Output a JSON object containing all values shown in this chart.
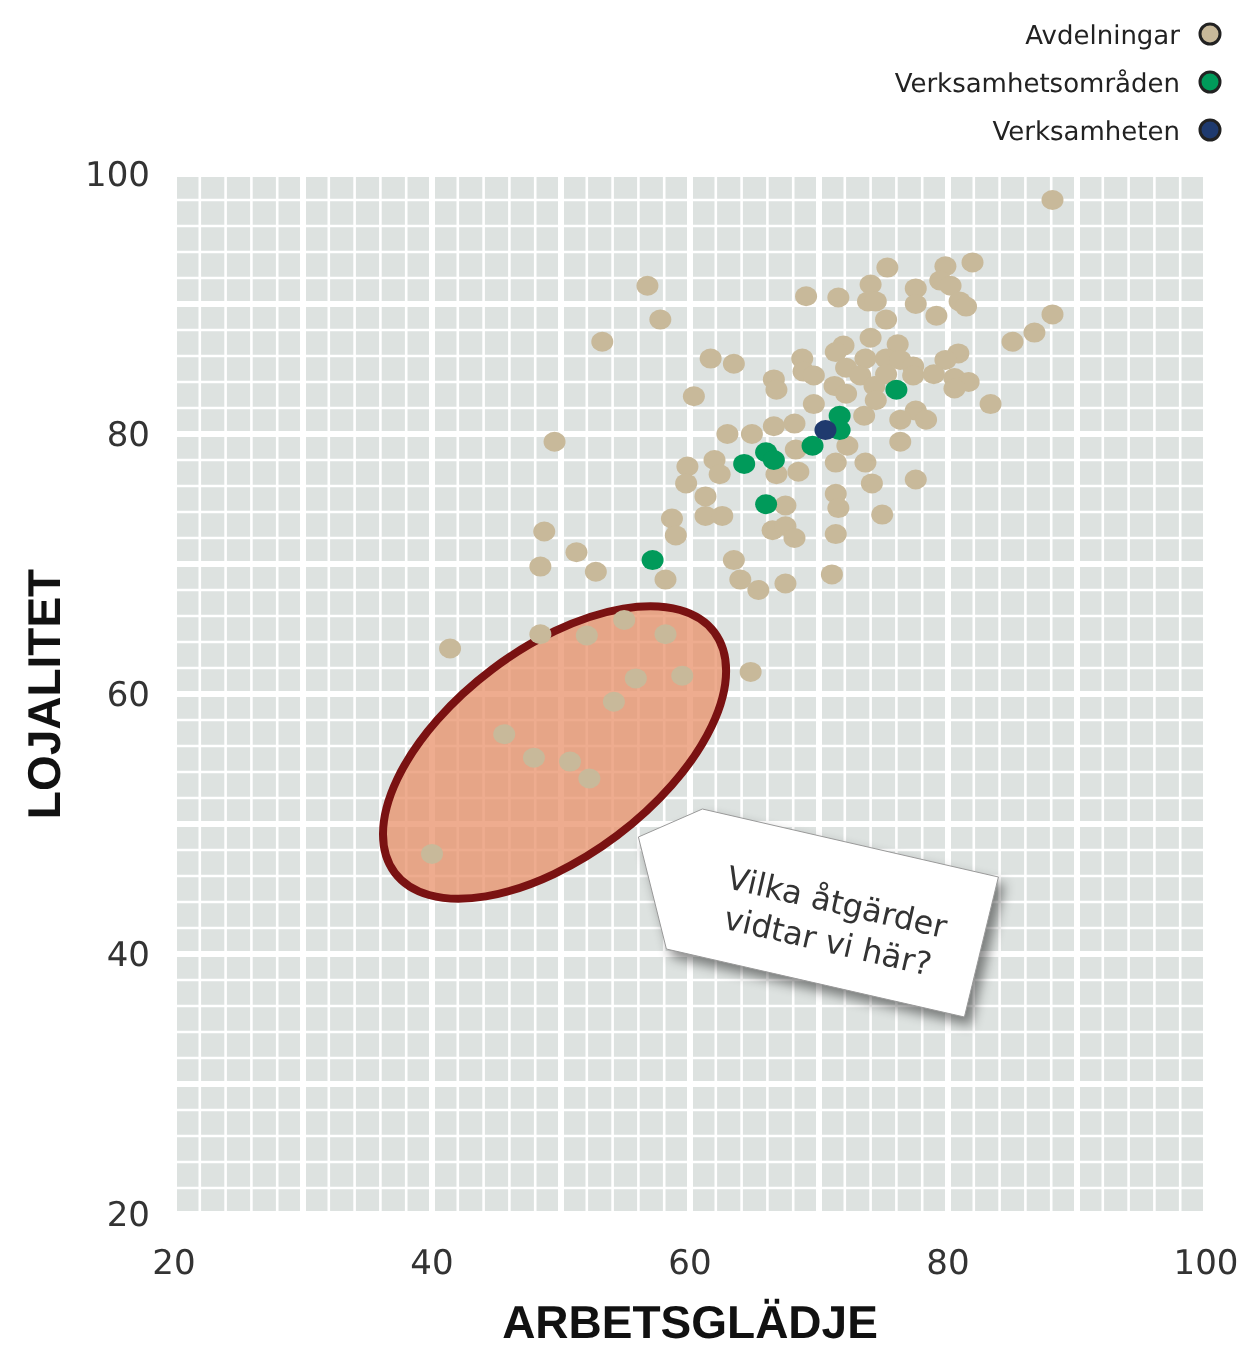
{
  "chart_data": {
    "type": "scatter",
    "xlabel": "ARBETSGLÄDJE",
    "ylabel": "LOJALITET",
    "xlim": [
      20,
      100
    ],
    "ylim": [
      20,
      100
    ],
    "xticks": [
      20,
      40,
      60,
      80,
      100
    ],
    "yticks": [
      20,
      40,
      60,
      80,
      100
    ],
    "grid": true,
    "legend": "top right",
    "marker": "circle",
    "annotations": [
      "Vilka åtgärder vidtar vi här?"
    ],
    "series": [
      {
        "name": "Avdelningar",
        "color": "#c8b99a",
        "x": [
          88.1,
          81.9,
          79.8,
          75.3,
          74.0,
          77.5,
          79.4,
          80.2,
          56.7,
          69.0,
          71.5,
          73.8,
          74.4,
          77.5,
          80.9,
          81.4,
          57.7,
          75.2,
          79.1,
          88.1,
          86.7,
          85.0,
          53.2,
          74.0,
          76.1,
          71.9,
          71.3,
          80.8,
          79.8,
          61.6,
          63.4,
          68.7,
          73.6,
          75.2,
          76.3,
          77.3,
          68.8,
          69.6,
          72.1,
          73.2,
          66.5,
          75.2,
          77.3,
          78.9,
          80.5,
          81.6,
          66.7,
          71.2,
          74.3,
          80.5,
          60.3,
          72.1,
          74.4,
          83.3,
          69.6,
          77.5,
          76.3,
          78.3,
          73.5,
          68.1,
          66.5,
          62.9,
          64.8,
          76.3,
          49.5,
          68.2,
          72.2,
          61.9,
          59.8,
          62.3,
          68.4,
          71.3,
          73.6,
          66.7,
          59.7,
          74.1,
          77.5,
          71.3,
          61.2,
          71.5,
          67.4,
          58.6,
          61.2,
          62.5,
          74.9,
          58.9,
          66.4,
          67.4,
          68.1,
          71.3,
          48.7,
          51.2,
          52.7,
          48.4,
          63.4,
          58.1,
          63.9,
          65.3,
          67.4,
          71.0,
          54.9,
          41.4,
          48.4,
          58.1,
          52.0,
          55.8,
          59.4,
          54.1,
          45.6,
          47.9,
          50.7,
          52.2,
          40.0,
          64.7
        ],
        "values": [
          98.0,
          93.2,
          92.9,
          92.8,
          91.5,
          91.2,
          91.8,
          91.4,
          91.4,
          90.6,
          90.5,
          90.2,
          90.2,
          90.0,
          90.2,
          89.8,
          88.8,
          88.8,
          89.1,
          89.2,
          87.8,
          87.1,
          87.1,
          87.4,
          86.9,
          86.8,
          86.3,
          86.2,
          85.7,
          85.8,
          85.4,
          85.8,
          85.8,
          85.8,
          85.7,
          85.2,
          84.8,
          84.5,
          85.1,
          84.5,
          84.2,
          84.6,
          84.5,
          84.6,
          84.3,
          84.0,
          83.4,
          83.7,
          83.7,
          83.5,
          82.9,
          83.1,
          82.6,
          82.3,
          82.3,
          81.8,
          81.1,
          81.1,
          81.4,
          80.8,
          80.6,
          80.0,
          80.0,
          79.4,
          79.4,
          78.8,
          79.1,
          78.0,
          77.5,
          76.9,
          77.1,
          77.8,
          77.8,
          76.9,
          76.2,
          76.2,
          76.5,
          75.4,
          75.2,
          74.3,
          74.5,
          73.5,
          73.7,
          73.7,
          73.8,
          72.2,
          72.6,
          72.9,
          72.0,
          72.3,
          72.5,
          70.9,
          69.4,
          69.8,
          70.3,
          68.8,
          68.8,
          68.0,
          68.5,
          69.2,
          65.7,
          63.5,
          64.6,
          64.6,
          64.5,
          61.2,
          61.4,
          59.4,
          56.9,
          55.1,
          54.8,
          53.5,
          47.7,
          61.7
        ]
      },
      {
        "name": "Verksamhetsområden",
        "color": "#009a5a",
        "x": [
          76.0,
          71.6,
          71.6,
          69.5,
          65.9,
          66.5,
          64.2,
          65.9,
          57.1
        ],
        "values": [
          83.4,
          81.4,
          80.3,
          79.1,
          78.6,
          78.0,
          77.7,
          74.6,
          70.3
        ]
      },
      {
        "name": "Verksamheten",
        "color": "#1f3a6e",
        "x": [
          70.5
        ],
        "values": [
          80.3
        ]
      }
    ]
  }
}
